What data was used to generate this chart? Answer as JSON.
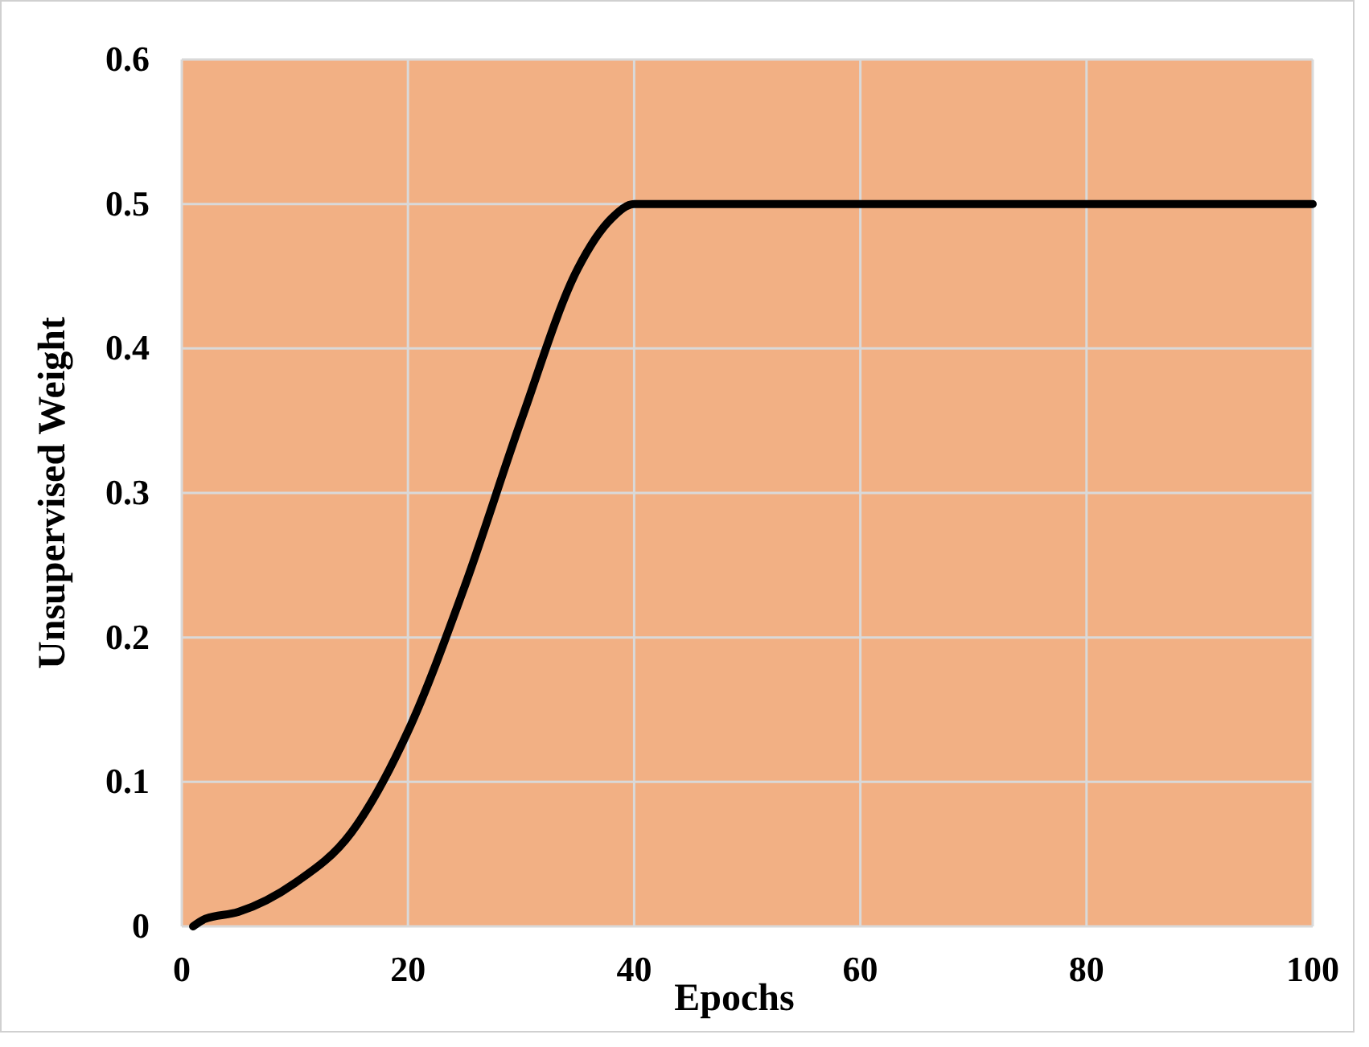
{
  "chart_data": {
    "type": "line",
    "xlabel": "Epochs",
    "ylabel": "Unsupervised Weight",
    "xlim": [
      0,
      100
    ],
    "xticks": [
      0,
      20,
      40,
      60,
      80,
      100
    ],
    "ylim": [
      0,
      0.6
    ],
    "yticks": [
      0,
      0.1,
      0.2,
      0.3,
      0.4,
      0.5,
      0.6
    ],
    "grid": true,
    "marker": "none",
    "line_style": "solid",
    "series": [
      {
        "color": "#000000",
        "x": [
          1,
          2,
          5,
          10,
          15,
          20,
          25,
          30,
          35,
          38,
          40,
          100
        ],
        "values": [
          0,
          0.005,
          0.01,
          0.03,
          0.065,
          0.135,
          0.235,
          0.35,
          0.455,
          0.49,
          0.5,
          0.5
        ]
      }
    ]
  }
}
